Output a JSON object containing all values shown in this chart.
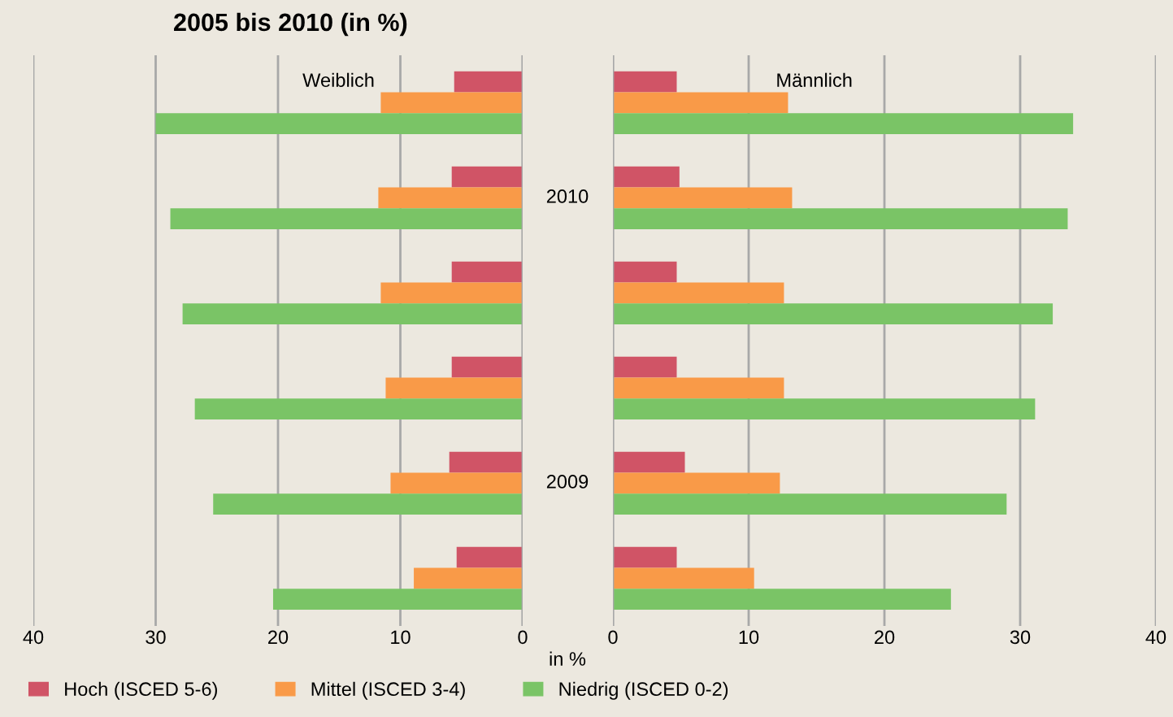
{
  "chart_data": [
    {
      "type": "bar",
      "orientation": "horizontal",
      "title": "2005 bis 2010 (in %)",
      "categories": [
        null,
        "2010",
        null,
        null,
        "2009",
        null
      ],
      "series": [
        {
          "name": "Hoch (ISCED 5-6)",
          "color": "#d05466",
          "values": [
            5.6,
            5.8,
            5.8,
            5.8,
            6.0,
            5.4
          ]
        },
        {
          "name": "Mittel (ISCED 3-4)",
          "color": "#f99a48",
          "values": [
            11.6,
            11.8,
            11.6,
            11.2,
            10.8,
            8.9
          ]
        },
        {
          "name": "Niedrig (ISCED 0-2)",
          "color": "#7ac466",
          "values": [
            30.0,
            28.8,
            27.8,
            26.8,
            25.3,
            20.4
          ]
        }
      ],
      "xlim": [
        40,
        0
      ],
      "xticks": [
        40,
        30,
        20,
        10,
        0
      ],
      "xlabel": "in %",
      "grid": "x",
      "legend": "bottom",
      "annotations": [
        "Weiblich"
      ]
    },
    {
      "type": "bar",
      "orientation": "horizontal",
      "categories": [
        null,
        null,
        null,
        null,
        null,
        null
      ],
      "series": [
        {
          "color": "#d05466",
          "values": [
            4.7,
            4.9,
            4.7,
            4.7,
            5.3,
            4.7
          ]
        },
        {
          "color": "#f99a48",
          "values": [
            12.9,
            13.2,
            12.6,
            12.6,
            12.3,
            10.4
          ]
        },
        {
          "color": "#7ac466",
          "values": [
            33.9,
            33.5,
            32.4,
            31.1,
            29.0,
            24.9
          ]
        }
      ],
      "xlim": [
        0,
        40
      ],
      "xticks": [
        0,
        10,
        20,
        30,
        40
      ],
      "grid": "x",
      "tick_labels": "x",
      "annotations": [
        "Männlich"
      ]
    }
  ]
}
